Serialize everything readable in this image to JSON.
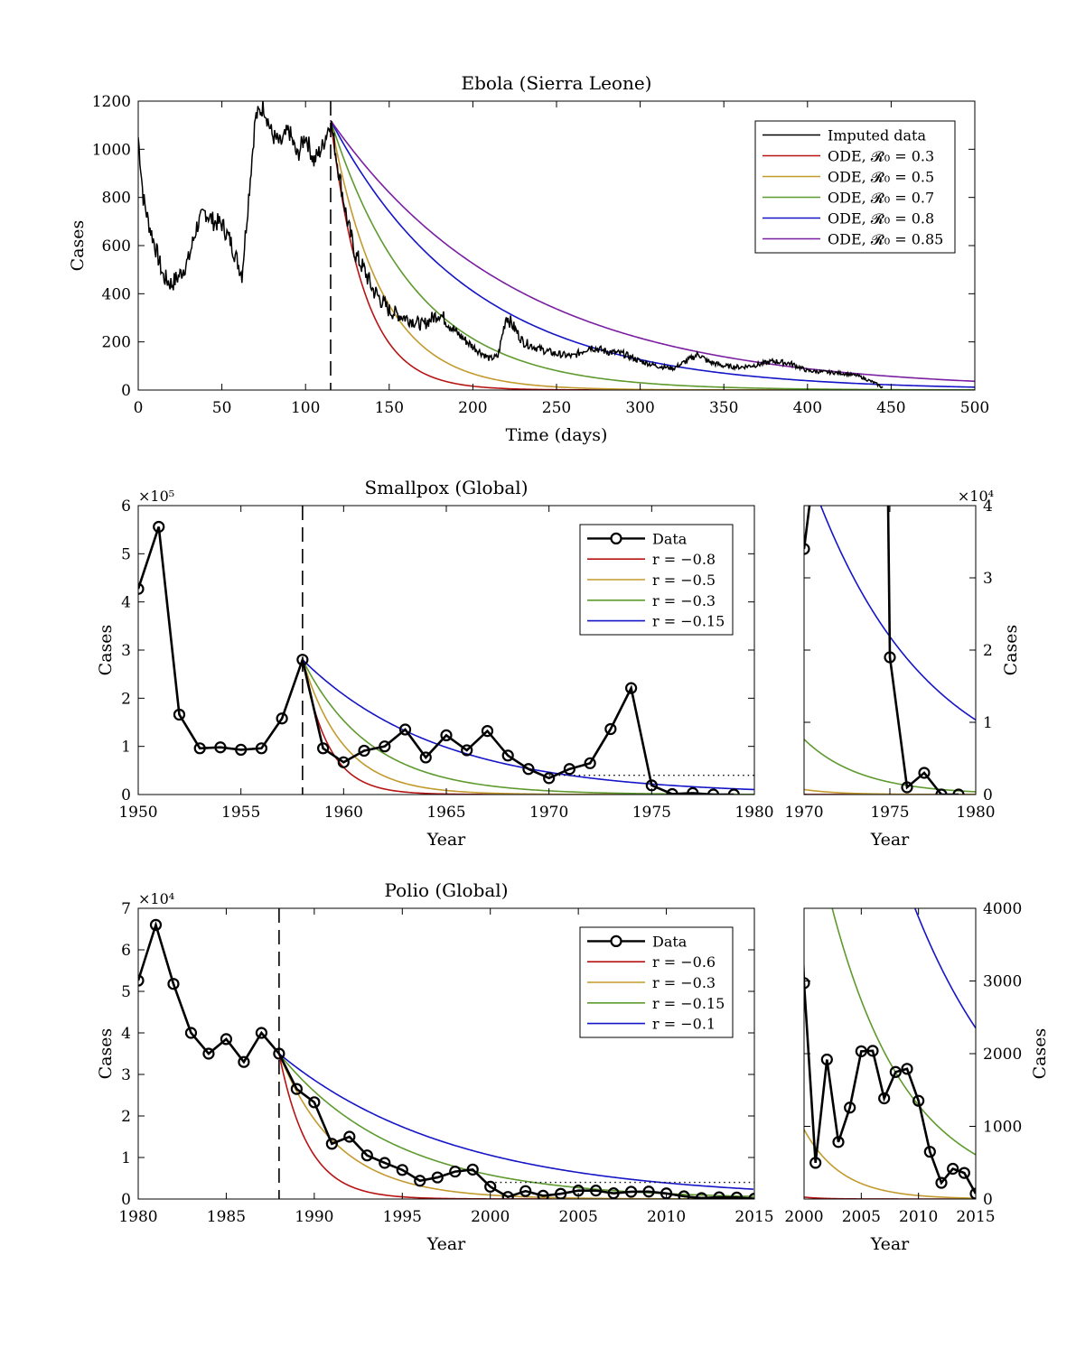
{
  "chart_data": [
    {
      "id": "ebola",
      "type": "line",
      "title": "Ebola (Sierra Leone)",
      "xlabel": "Time (days)",
      "ylabel": "Cases",
      "xlim": [
        0,
        500
      ],
      "ylim": [
        0,
        1200
      ],
      "xticks": [
        0,
        50,
        100,
        150,
        200,
        250,
        300,
        350,
        400,
        450,
        500
      ],
      "yticks": [
        0,
        200,
        400,
        600,
        800,
        1000,
        1200
      ],
      "intervention_x": 115,
      "legend_position": "top-right",
      "data_series": {
        "name": "Imputed data",
        "color": "#000000",
        "x": [
          0,
          3,
          6,
          10,
          15,
          20,
          25,
          30,
          35,
          40,
          45,
          50,
          55,
          60,
          62,
          65,
          70,
          75,
          80,
          85,
          90,
          95,
          100,
          105,
          110,
          115,
          120,
          125,
          130,
          135,
          140,
          150,
          160,
          170,
          180,
          190,
          200,
          210,
          215,
          220,
          230,
          240,
          250,
          260,
          270,
          280,
          290,
          300,
          310,
          320,
          330,
          335,
          340,
          350,
          360,
          370,
          380,
          390,
          400,
          410,
          420,
          430,
          440,
          445
        ],
        "y": [
          1050,
          800,
          700,
          600,
          470,
          440,
          480,
          540,
          680,
          740,
          700,
          690,
          620,
          520,
          480,
          720,
          1130,
          1180,
          1060,
          1020,
          1080,
          970,
          1060,
          950,
          1010,
          1120,
          900,
          700,
          560,
          500,
          420,
          330,
          300,
          270,
          320,
          240,
          180,
          130,
          140,
          310,
          200,
          170,
          150,
          140,
          180,
          160,
          150,
          120,
          100,
          90,
          130,
          150,
          120,
          100,
          95,
          105,
          120,
          110,
          80,
          75,
          70,
          60,
          30,
          10
        ]
      },
      "model_series": [
        {
          "name": "ODE, 𝓡₀ = 0.3",
          "color": "#b81414",
          "start": [
            115,
            1120
          ],
          "rate": 0.05
        },
        {
          "name": "ODE, 𝓡₀ = 0.5",
          "color": "#c39a2e",
          "start": [
            115,
            1120
          ],
          "rate": 0.033
        },
        {
          "name": "ODE, 𝓡₀ = 0.7",
          "color": "#5e9a2e",
          "start": [
            115,
            1120
          ],
          "rate": 0.0195
        },
        {
          "name": "ODE, 𝓡₀ = 0.8",
          "color": "#1515c8",
          "start": [
            115,
            1120
          ],
          "rate": 0.0118
        },
        {
          "name": "ODE, 𝓡₀ = 0.85",
          "color": "#7a1fa2",
          "start": [
            115,
            1120
          ],
          "rate": 0.0089
        }
      ]
    },
    {
      "id": "smallpox",
      "type": "line",
      "title": "Smallpox (Global)",
      "xlabel": "Year",
      "ylabel": "Cases",
      "xlim": [
        1950,
        1980
      ],
      "ylim": [
        0,
        600000
      ],
      "xticks": [
        1950,
        1955,
        1960,
        1965,
        1970,
        1975,
        1980
      ],
      "yticks": [
        0,
        100000,
        200000,
        300000,
        400000,
        500000,
        600000
      ],
      "ytick_labels": [
        "0",
        "1",
        "2",
        "3",
        "4",
        "5",
        "6"
      ],
      "multiplier": "×10⁵",
      "intervention_x": 1958,
      "threshold": {
        "y": 40000,
        "x_from": 1970,
        "x_to": 1980
      },
      "legend_position": "top-right",
      "data_series": {
        "name": "Data",
        "color": "#000000",
        "x": [
          1950,
          1951,
          1952,
          1953,
          1954,
          1955,
          1956,
          1957,
          1958,
          1959,
          1960,
          1961,
          1962,
          1963,
          1964,
          1965,
          1966,
          1967,
          1968,
          1969,
          1970,
          1971,
          1972,
          1973,
          1974,
          1975,
          1976,
          1977,
          1978,
          1979
        ],
        "y": [
          427000,
          556000,
          166000,
          96000,
          98000,
          93000,
          96000,
          158000,
          280000,
          96000,
          67000,
          91000,
          100000,
          135000,
          77000,
          123000,
          92000,
          132000,
          81000,
          53000,
          34000,
          53000,
          65000,
          136000,
          221000,
          19000,
          1000,
          3000,
          0,
          0
        ]
      },
      "model_series": [
        {
          "name": "r = −0.8",
          "color": "#b81414",
          "start": [
            1958,
            280000
          ],
          "rate": 0.8
        },
        {
          "name": "r = −0.5",
          "color": "#c39a2e",
          "start": [
            1958,
            280000
          ],
          "rate": 0.5
        },
        {
          "name": "r = −0.3",
          "color": "#5e9a2e",
          "start": [
            1958,
            280000
          ],
          "rate": 0.3
        },
        {
          "name": "r = −0.15",
          "color": "#1515c8",
          "start": [
            1958,
            280000
          ],
          "rate": 0.15
        }
      ],
      "inset": {
        "xlim": [
          1970,
          1980
        ],
        "ylim": [
          0,
          40000
        ],
        "xticks": [
          1970,
          1975,
          1980
        ],
        "yticks": [
          0,
          10000,
          20000,
          30000,
          40000
        ],
        "ytick_labels": [
          "0",
          "1",
          "2",
          "3",
          "4"
        ],
        "multiplier": "×10⁴",
        "xlabel": "Year",
        "ylabel": "Cases"
      }
    },
    {
      "id": "polio",
      "type": "line",
      "title": "Polio (Global)",
      "xlabel": "Year",
      "ylabel": "Cases",
      "xlim": [
        1980,
        2015
      ],
      "ylim": [
        0,
        70000
      ],
      "xticks": [
        1980,
        1985,
        1990,
        1995,
        2000,
        2005,
        2010,
        2015
      ],
      "yticks": [
        0,
        10000,
        20000,
        30000,
        40000,
        50000,
        60000,
        70000
      ],
      "ytick_labels": [
        "0",
        "1",
        "2",
        "3",
        "4",
        "5",
        "6",
        "7"
      ],
      "multiplier": "×10⁴",
      "intervention_x": 1988,
      "threshold": {
        "y": 4000,
        "x_from": 2000,
        "x_to": 2015
      },
      "legend_position": "top-right",
      "data_series": {
        "name": "Data",
        "color": "#000000",
        "x": [
          1980,
          1981,
          1982,
          1983,
          1984,
          1985,
          1986,
          1987,
          1988,
          1989,
          1990,
          1991,
          1992,
          1993,
          1994,
          1995,
          1996,
          1997,
          1998,
          1999,
          2000,
          2001,
          2002,
          2003,
          2004,
          2005,
          2006,
          2007,
          2008,
          2009,
          2010,
          2011,
          2012,
          2013,
          2014,
          2015
        ],
        "y": [
          52600,
          66000,
          51800,
          40000,
          35000,
          38500,
          33000,
          40000,
          35000,
          26500,
          23300,
          13300,
          15000,
          10500,
          8700,
          7000,
          4400,
          5200,
          6600,
          7100,
          2971,
          498,
          1919,
          784,
          1258,
          2033,
          2039,
          1385,
          1748,
          1791,
          1352,
          650,
          223,
          416,
          359,
          74
        ]
      },
      "model_series": [
        {
          "name": "r = −0.6",
          "color": "#b81414",
          "start": [
            1988,
            35000
          ],
          "rate": 0.6
        },
        {
          "name": "r = −0.3",
          "color": "#c39a2e",
          "start": [
            1988,
            35000
          ],
          "rate": 0.3
        },
        {
          "name": "r = −0.15",
          "color": "#5e9a2e",
          "start": [
            1988,
            35000
          ],
          "rate": 0.15
        },
        {
          "name": "r = −0.1",
          "color": "#1515c8",
          "start": [
            1988,
            35000
          ],
          "rate": 0.1
        }
      ],
      "inset": {
        "xlim": [
          2000,
          2015
        ],
        "ylim": [
          0,
          4000
        ],
        "xticks": [
          2000,
          2005,
          2010,
          2015
        ],
        "yticks": [
          0,
          1000,
          2000,
          3000,
          4000
        ],
        "xlabel": "Year",
        "ylabel": "Cases"
      }
    }
  ]
}
